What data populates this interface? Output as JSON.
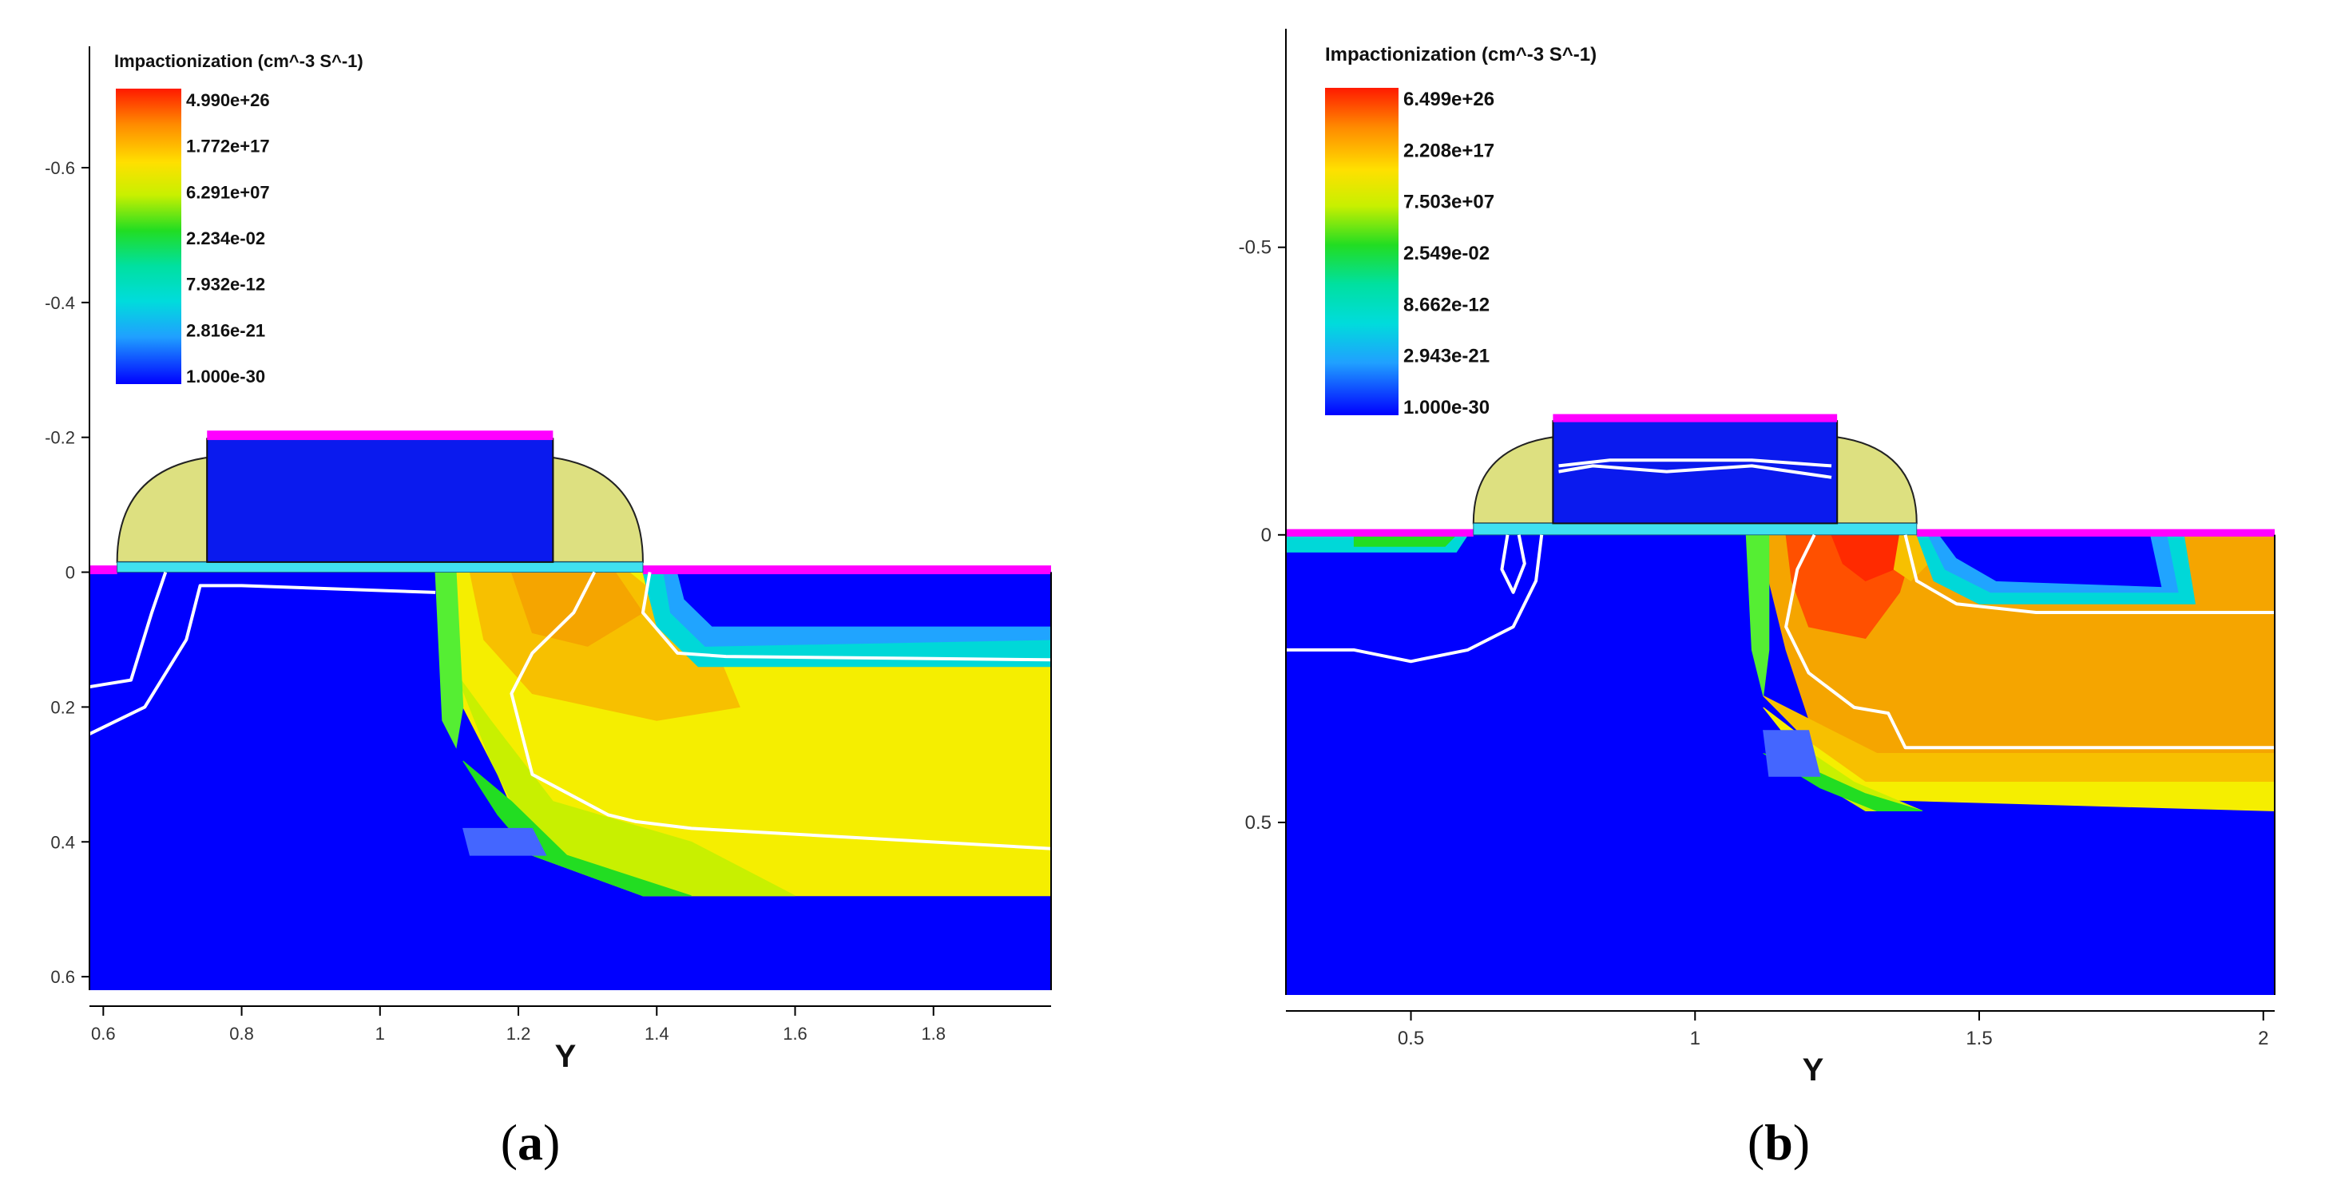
{
  "chart_data": [
    {
      "panel": "(a)",
      "panel_letter": "a",
      "type": "heatmap",
      "title": "Impactionization (cm^-3 S^-1)",
      "xlabel": "Y",
      "ylabel": "",
      "xlim": [
        0.58,
        1.97
      ],
      "ylim": [
        -0.78,
        0.62
      ],
      "y_inverted": true,
      "x_ticks": [
        "0.6",
        "0.8",
        "1",
        "1.2",
        "1.4",
        "1.6",
        "1.8"
      ],
      "x_tick_values": [
        0.6,
        0.8,
        1.0,
        1.2,
        1.4,
        1.6,
        1.8
      ],
      "y_ticks": [
        "-0.6",
        "-0.4",
        "-0.2",
        "0",
        "0.2",
        "0.4",
        "0.6"
      ],
      "y_tick_values": [
        -0.6,
        -0.4,
        -0.2,
        0,
        0.2,
        0.4,
        0.6
      ],
      "legend_labels": [
        "4.990e+26",
        "1.772e+17",
        "6.291e+07",
        "2.234e-02",
        "7.932e-12",
        "2.816e-21",
        "1.000e-30"
      ],
      "gate": {
        "x_start": 0.75,
        "x_end": 1.25,
        "top": -0.21
      },
      "spacer_left": 0.62,
      "spacer_right": 1.38,
      "oxide_thickness": 0.015,
      "sd_contact_top": -0.01,
      "bottom_level": 0.48,
      "regions": [
        {
          "color": "#f5ee00",
          "poly": [
            [
              1.09,
              0.0
            ],
            [
              1.97,
              0.0
            ],
            [
              1.97,
              0.48
            ],
            [
              1.38,
              0.48
            ],
            [
              1.22,
              0.42
            ],
            [
              1.17,
              0.3
            ],
            [
              1.12,
              0.2
            ],
            [
              1.09,
              0.06
            ]
          ]
        },
        {
          "color": "#c8f000",
          "poly": [
            [
              1.11,
              0.15
            ],
            [
              1.16,
              0.28
            ],
            [
              1.22,
              0.4
            ],
            [
              1.38,
              0.48
            ],
            [
              1.6,
              0.48
            ],
            [
              1.45,
              0.4
            ],
            [
              1.25,
              0.34
            ],
            [
              1.16,
              0.22
            ]
          ]
        },
        {
          "color": "#22dd22",
          "poly": [
            [
              1.12,
              0.28
            ],
            [
              1.17,
              0.36
            ],
            [
              1.22,
              0.42
            ],
            [
              1.38,
              0.48
            ],
            [
              1.45,
              0.48
            ],
            [
              1.27,
              0.42
            ],
            [
              1.19,
              0.34
            ]
          ]
        },
        {
          "color": "#f7c000",
          "poly": [
            [
              1.13,
              0.0
            ],
            [
              1.36,
              0.0
            ],
            [
              1.48,
              0.1
            ],
            [
              1.52,
              0.2
            ],
            [
              1.4,
              0.22
            ],
            [
              1.22,
              0.18
            ],
            [
              1.15,
              0.1
            ]
          ]
        },
        {
          "color": "#f5a500",
          "poly": [
            [
              1.19,
              0.0
            ],
            [
              1.34,
              0.0
            ],
            [
              1.38,
              0.06
            ],
            [
              1.3,
              0.11
            ],
            [
              1.22,
              0.09
            ]
          ]
        },
        {
          "color": "#55ee33",
          "poly": [
            [
              1.08,
              0.0
            ],
            [
              1.11,
              0.0
            ],
            [
              1.12,
              0.2
            ],
            [
              1.11,
              0.26
            ],
            [
              1.09,
              0.22
            ]
          ]
        },
        {
          "color": "#00d8d8",
          "poly": [
            [
              1.38,
              0.0
            ],
            [
              1.97,
              0.0
            ],
            [
              1.97,
              0.14
            ],
            [
              1.46,
              0.14
            ],
            [
              1.4,
              0.08
            ]
          ]
        },
        {
          "color": "#20a4ff",
          "poly": [
            [
              1.41,
              0.0
            ],
            [
              1.97,
              0.0
            ],
            [
              1.97,
              0.1
            ],
            [
              1.47,
              0.11
            ],
            [
              1.42,
              0.06
            ]
          ]
        },
        {
          "color": "#0000ff",
          "poly": [
            [
              1.43,
              0.0
            ],
            [
              1.97,
              0.0
            ],
            [
              1.97,
              0.08
            ],
            [
              1.48,
              0.08
            ],
            [
              1.44,
              0.04
            ]
          ]
        },
        {
          "color": "#4466ff",
          "poly": [
            [
              1.12,
              0.38
            ],
            [
              1.22,
              0.38
            ],
            [
              1.24,
              0.42
            ],
            [
              1.13,
              0.42
            ]
          ]
        }
      ],
      "contours": [
        {
          "points": [
            [
              0.58,
              0.17
            ],
            [
              0.64,
              0.16
            ],
            [
              0.67,
              0.06
            ],
            [
              0.69,
              0.0
            ]
          ]
        },
        {
          "points": [
            [
              0.58,
              0.24
            ],
            [
              0.66,
              0.2
            ],
            [
              0.72,
              0.1
            ],
            [
              0.74,
              0.02
            ],
            [
              0.8,
              0.02
            ],
            [
              1.08,
              0.03
            ]
          ]
        },
        {
          "points": [
            [
              1.31,
              0.0
            ],
            [
              1.28,
              0.06
            ],
            [
              1.22,
              0.12
            ],
            [
              1.19,
              0.18
            ],
            [
              1.22,
              0.3
            ],
            [
              1.33,
              0.36
            ],
            [
              1.37,
              0.37
            ],
            [
              1.45,
              0.38
            ],
            [
              1.97,
              0.41
            ]
          ]
        },
        {
          "points": [
            [
              1.39,
              0.0
            ],
            [
              1.38,
              0.06
            ],
            [
              1.43,
              0.12
            ],
            [
              1.5,
              0.125
            ],
            [
              1.97,
              0.13
            ]
          ]
        }
      ]
    },
    {
      "panel": "(b)",
      "panel_letter": "b",
      "type": "heatmap",
      "title": "Impactionization (cm^-3 S^-1)",
      "xlabel": "Y",
      "ylabel": "",
      "xlim": [
        0.28,
        2.02
      ],
      "ylim": [
        -0.88,
        0.8
      ],
      "y_inverted": true,
      "x_ticks": [
        "0.5",
        "1",
        "1.5",
        "2"
      ],
      "x_tick_values": [
        0.5,
        1.0,
        1.5,
        2.0
      ],
      "y_ticks": [
        "-0.5",
        "0",
        "0.5"
      ],
      "y_tick_values": [
        -0.5,
        0,
        0.5
      ],
      "legend_labels": [
        "6.499e+26",
        "2.208e+17",
        "7.503e+07",
        "2.549e-02",
        "8.662e-12",
        "2.943e-21",
        "1.000e-30"
      ],
      "gate": {
        "x_start": 0.75,
        "x_end": 1.25,
        "top": -0.21
      },
      "spacer_left": 0.61,
      "spacer_right": 1.39,
      "oxide_thickness": 0.02,
      "sd_contact_top": -0.01,
      "bottom_level": 0.48,
      "regions": [
        {
          "color": "#f5a500",
          "poly": [
            [
              1.13,
              0.0
            ],
            [
              2.02,
              0.0
            ],
            [
              2.02,
              0.4
            ],
            [
              1.3,
              0.4
            ],
            [
              1.2,
              0.32
            ],
            [
              1.16,
              0.2
            ],
            [
              1.13,
              0.08
            ]
          ]
        },
        {
          "color": "#f7c000",
          "poly": [
            [
              1.12,
              0.28
            ],
            [
              1.2,
              0.36
            ],
            [
              1.3,
              0.43
            ],
            [
              2.02,
              0.43
            ],
            [
              2.02,
              0.38
            ],
            [
              1.32,
              0.38
            ],
            [
              1.22,
              0.33
            ]
          ]
        },
        {
          "color": "#f5ee00",
          "poly": [
            [
              1.12,
              0.3
            ],
            [
              1.2,
              0.4
            ],
            [
              1.3,
              0.46
            ],
            [
              2.02,
              0.48
            ],
            [
              2.02,
              0.43
            ],
            [
              1.3,
              0.43
            ],
            [
              1.2,
              0.36
            ]
          ]
        },
        {
          "color": "#c8f000",
          "poly": [
            [
              1.12,
              0.34
            ],
            [
              1.2,
              0.42
            ],
            [
              1.3,
              0.48
            ],
            [
              1.4,
              0.48
            ],
            [
              1.28,
              0.43
            ],
            [
              1.19,
              0.37
            ]
          ]
        },
        {
          "color": "#22dd22",
          "poly": [
            [
              1.12,
              0.38
            ],
            [
              1.22,
              0.44
            ],
            [
              1.32,
              0.48
            ],
            [
              1.4,
              0.48
            ],
            [
              1.3,
              0.45
            ],
            [
              1.21,
              0.41
            ]
          ]
        },
        {
          "color": "#55ee33",
          "poly": [
            [
              1.09,
              0.0
            ],
            [
              1.13,
              0.0
            ],
            [
              1.13,
              0.2
            ],
            [
              1.12,
              0.28
            ],
            [
              1.1,
              0.2
            ]
          ]
        },
        {
          "color": "#ff5000",
          "poly": [
            [
              1.16,
              0.0
            ],
            [
              1.39,
              0.0
            ],
            [
              1.36,
              0.1
            ],
            [
              1.3,
              0.18
            ],
            [
              1.2,
              0.16
            ],
            [
              1.17,
              0.08
            ]
          ]
        },
        {
          "color": "#ff2a00",
          "poly": [
            [
              1.24,
              0.0
            ],
            [
              1.36,
              0.0
            ],
            [
              1.35,
              0.06
            ],
            [
              1.3,
              0.08
            ],
            [
              1.26,
              0.05
            ]
          ]
        },
        {
          "color": "#f7c000",
          "poly": [
            [
              1.36,
              0.0
            ],
            [
              1.4,
              0.0
            ],
            [
              1.42,
              0.04
            ],
            [
              1.38,
              0.08
            ],
            [
              1.35,
              0.06
            ]
          ]
        },
        {
          "color": "#00d8d8",
          "poly": [
            [
              1.39,
              0.0
            ],
            [
              1.86,
              0.0
            ],
            [
              1.88,
              0.12
            ],
            [
              1.5,
              0.12
            ],
            [
              1.42,
              0.08
            ]
          ]
        },
        {
          "color": "#20a4ff",
          "poly": [
            [
              1.41,
              0.0
            ],
            [
              1.83,
              0.0
            ],
            [
              1.85,
              0.1
            ],
            [
              1.52,
              0.1
            ],
            [
              1.44,
              0.06
            ]
          ]
        },
        {
          "color": "#0000ff",
          "poly": [
            [
              1.43,
              0.0
            ],
            [
              1.8,
              0.0
            ],
            [
              1.82,
              0.09
            ],
            [
              1.53,
              0.08
            ],
            [
              1.46,
              0.04
            ]
          ]
        },
        {
          "color": "#00d8d8",
          "poly": [
            [
              0.28,
              0.0
            ],
            [
              0.6,
              0.0
            ],
            [
              0.58,
              0.03
            ],
            [
              0.28,
              0.03
            ]
          ]
        },
        {
          "color": "#22dd22",
          "poly": [
            [
              0.4,
              0.0
            ],
            [
              0.58,
              0.0
            ],
            [
              0.56,
              0.02
            ],
            [
              0.4,
              0.02
            ]
          ]
        },
        {
          "color": "#4466ff",
          "poly": [
            [
              1.12,
              0.34
            ],
            [
              1.2,
              0.34
            ],
            [
              1.22,
              0.42
            ],
            [
              1.13,
              0.42
            ]
          ]
        }
      ],
      "contours": [
        {
          "points": [
            [
              0.28,
              0.2
            ],
            [
              0.4,
              0.2
            ],
            [
              0.5,
              0.22
            ],
            [
              0.6,
              0.2
            ],
            [
              0.68,
              0.16
            ],
            [
              0.72,
              0.08
            ],
            [
              0.73,
              0.0
            ]
          ]
        },
        {
          "points": [
            [
              0.69,
              0.0
            ],
            [
              0.7,
              0.05
            ],
            [
              0.68,
              0.1
            ],
            [
              0.66,
              0.06
            ],
            [
              0.67,
              0.0
            ]
          ]
        },
        {
          "points": [
            [
              1.21,
              0.0
            ],
            [
              1.18,
              0.06
            ],
            [
              1.16,
              0.16
            ],
            [
              1.2,
              0.24
            ],
            [
              1.28,
              0.3
            ],
            [
              1.34,
              0.31
            ],
            [
              1.37,
              0.37
            ],
            [
              2.02,
              0.37
            ]
          ]
        },
        {
          "points": [
            [
              1.37,
              0.0
            ],
            [
              1.39,
              0.08
            ],
            [
              1.46,
              0.12
            ],
            [
              1.6,
              0.135
            ],
            [
              2.02,
              0.135
            ]
          ]
        },
        {
          "points": [
            [
              0.76,
              -0.12
            ],
            [
              0.85,
              -0.13
            ],
            [
              1.1,
              -0.13
            ],
            [
              1.24,
              -0.12
            ]
          ]
        },
        {
          "points": [
            [
              0.76,
              -0.11
            ],
            [
              0.82,
              -0.12
            ],
            [
              0.95,
              -0.11
            ],
            [
              1.1,
              -0.12
            ],
            [
              1.24,
              -0.1
            ]
          ]
        }
      ]
    }
  ]
}
